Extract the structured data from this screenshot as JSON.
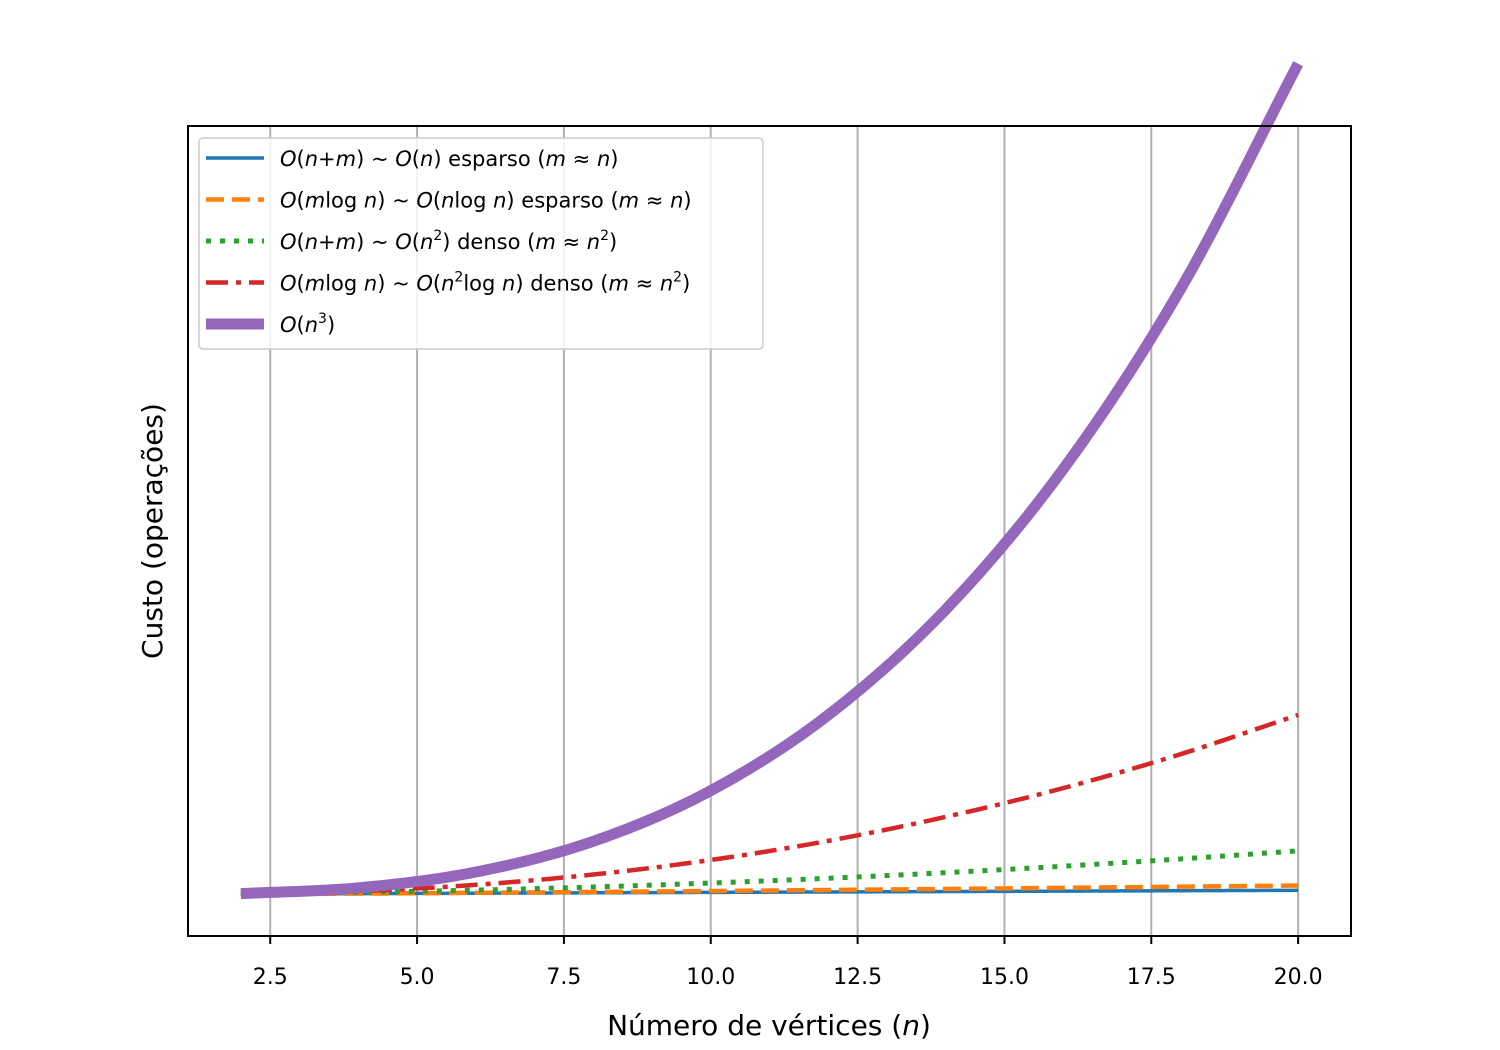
{
  "chart_data": {
    "type": "line",
    "xlabel": "Número de vértices",
    "xlabel_var": "n",
    "ylabel": "Custo (operações)",
    "xlim": [
      1.1,
      20.9
    ],
    "ylim": [
      -400,
      7400
    ],
    "x_ticks": [
      2.5,
      5.0,
      7.5,
      10.0,
      12.5,
      15.0,
      17.5,
      20.0
    ],
    "x_tick_labels": [
      "2.5",
      "5.0",
      "7.5",
      "10.0",
      "12.5",
      "15.0",
      "17.5",
      "20.0"
    ],
    "y_ticks_visible": false,
    "grid": "vertical",
    "legend_position": "top-left",
    "x": [
      2,
      4,
      6,
      8,
      10,
      12,
      14,
      16,
      18,
      20
    ],
    "series": [
      {
        "name": "O(n+m) ~ O(n) esparso (m ≈ n)",
        "legend": [
          "O",
          "(",
          "n",
          "+",
          "m",
          ") ~ ",
          "O",
          "(",
          "n",
          ") esparso (",
          "m",
          " ≈ ",
          "n",
          ")"
        ],
        "color": "#1f77b4",
        "style": "solid",
        "width": 3.5,
        "values": [
          4,
          8,
          12,
          16,
          20,
          24,
          28,
          32,
          36,
          40
        ]
      },
      {
        "name": "O(m log n) ~ O(n log n) esparso (m ≈ n)",
        "legend": [
          "O",
          "(",
          "m",
          "log ",
          "n",
          ") ~ ",
          "O",
          "(",
          "n",
          "log ",
          "n",
          ") esparso (",
          "m",
          " ≈ ",
          "n",
          ")"
        ],
        "color": "#ff7f0e",
        "style": "dashed",
        "width": 4.5,
        "values": [
          2,
          8,
          16,
          24,
          33,
          43,
          53,
          64,
          75,
          86
        ]
      },
      {
        "name": "O(n+m) ~ O(n²) denso (m ≈ n²)",
        "legend": [
          "O",
          "(",
          "n",
          "+",
          "m",
          ") ~ ",
          "O",
          "(",
          "n",
          "2",
          ") denso (",
          "m",
          " ≈ ",
          "n",
          "2",
          ")"
        ],
        "color": "#2ca02c",
        "style": "dotted",
        "width": 5,
        "values": [
          6,
          20,
          42,
          72,
          110,
          156,
          210,
          272,
          342,
          420
        ]
      },
      {
        "name": "O(m log n) ~ O(n² log n) denso (m ≈ n²)",
        "legend": [
          "O",
          "(",
          "m",
          "log ",
          "n",
          ") ~ ",
          "O",
          "(",
          "n",
          "2",
          "log ",
          "n",
          ") denso (",
          "m",
          " ≈ ",
          "n",
          "2",
          ")"
        ],
        "color": "#d62728",
        "style": "dashdot",
        "width": 4.5,
        "values": [
          4,
          32,
          93,
          192,
          332,
          516,
          747,
          1024,
          1351,
          1729
        ]
      },
      {
        "name": "O(n³)",
        "legend": [
          "O",
          "(",
          "n",
          "3",
          ")"
        ],
        "color": "#9467bd",
        "style": "solid",
        "width": 11,
        "values": [
          8,
          64,
          216,
          512,
          1000,
          1728,
          2744,
          4096,
          5832,
          8000
        ]
      }
    ]
  }
}
